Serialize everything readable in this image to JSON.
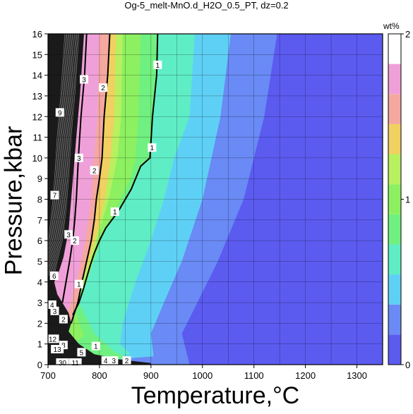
{
  "chart_data": {
    "type": "heatmap",
    "title": "Og-5_melt-MnO.d_H2O_0.5_PT, dz=0.2",
    "xlabel": "Temperature,°C",
    "ylabel": "Pressure,kbar",
    "xlim": [
      700,
      1350
    ],
    "ylim": [
      0,
      16
    ],
    "x_ticks": [
      "700",
      "800",
      "900",
      "1000",
      "1100",
      "1200",
      "1300"
    ],
    "y_ticks": [
      "0",
      "1",
      "2",
      "3",
      "4",
      "5",
      "6",
      "7",
      "8",
      "9",
      "10",
      "11",
      "12",
      "13",
      "14",
      "15",
      "16"
    ],
    "colorbar": {
      "unit": "wt%",
      "min": 0,
      "max": 2,
      "ticks": [
        "0",
        "1",
        "2"
      ]
    },
    "contour_lines": [
      {
        "level": 1,
        "T": [
          913,
          911,
          903,
          898,
          880,
          862,
          836,
          812,
          800,
          790,
          782,
          775,
          768,
          760,
          752,
          748
        ],
        "P": [
          16,
          14,
          12,
          10,
          9.6,
          8.5,
          7.4,
          6.6,
          6,
          5.4,
          4.8,
          4.2,
          3.6,
          3,
          2.6,
          2.4
        ]
      },
      {
        "level": 2,
        "T": [
          820,
          816,
          809,
          805,
          800,
          794,
          790,
          784,
          775,
          766,
          758,
          750,
          745
        ],
        "P": [
          16,
          14,
          12,
          10,
          9,
          8,
          7,
          6,
          5,
          4,
          3,
          2.4,
          2
        ]
      },
      {
        "level": 3,
        "T": [
          775,
          771,
          764,
          759,
          755,
          752,
          748,
          742,
          735,
          728
        ],
        "P": [
          16,
          14,
          12,
          10,
          8,
          7,
          6,
          5,
          4,
          3
        ]
      }
    ],
    "contour_labels": [
      {
        "text": "1",
        "T": 913,
        "P": 14.5
      },
      {
        "text": "1",
        "T": 902,
        "P": 10.5
      },
      {
        "text": "1",
        "T": 830,
        "P": 7.4
      },
      {
        "text": "1",
        "T": 760,
        "P": 3.9
      },
      {
        "text": "1",
        "T": 793,
        "P": 0.9
      },
      {
        "text": "2",
        "T": 807,
        "P": 13.4
      },
      {
        "text": "2",
        "T": 790,
        "P": 9.4
      },
      {
        "text": "2",
        "T": 752,
        "P": 6.0
      },
      {
        "text": "2",
        "T": 730,
        "P": 2.2
      },
      {
        "text": "2",
        "T": 853,
        "P": 0.2
      },
      {
        "text": "3",
        "T": 770,
        "P": 13.8
      },
      {
        "text": "3",
        "T": 760,
        "P": 10.0
      },
      {
        "text": "3",
        "T": 740,
        "P": 6.3
      },
      {
        "text": "3",
        "T": 713,
        "P": 2.6
      },
      {
        "text": "3",
        "T": 828,
        "P": 0.2
      },
      {
        "text": "4",
        "T": 708,
        "P": 2.9
      },
      {
        "text": "4",
        "T": 812,
        "P": 0.2
      },
      {
        "text": "5",
        "T": 765,
        "P": 0.6
      },
      {
        "text": "6",
        "T": 712,
        "P": 4.3
      },
      {
        "text": "7",
        "T": 713,
        "P": 8.2
      },
      {
        "text": "8",
        "T": 730,
        "P": 0.95
      },
      {
        "text": "9",
        "T": 723,
        "P": 12.2
      },
      {
        "text": "12",
        "T": 709,
        "P": 1.25
      },
      {
        "text": "13",
        "T": 718,
        "P": 0.75
      },
      {
        "text": "30",
        "T": 728,
        "P": 0.1
      },
      {
        "text": "11",
        "T": 753,
        "P": 0.1
      }
    ]
  },
  "colors": {
    "colorbar_stops": [
      "#5b5bf0",
      "#6a8af5",
      "#5fd0f5",
      "#5fedc5",
      "#70f080",
      "#8cf060",
      "#b8f060",
      "#f0d060",
      "#f5a8a0",
      "#f0a0d8",
      "#ffffff"
    ]
  }
}
